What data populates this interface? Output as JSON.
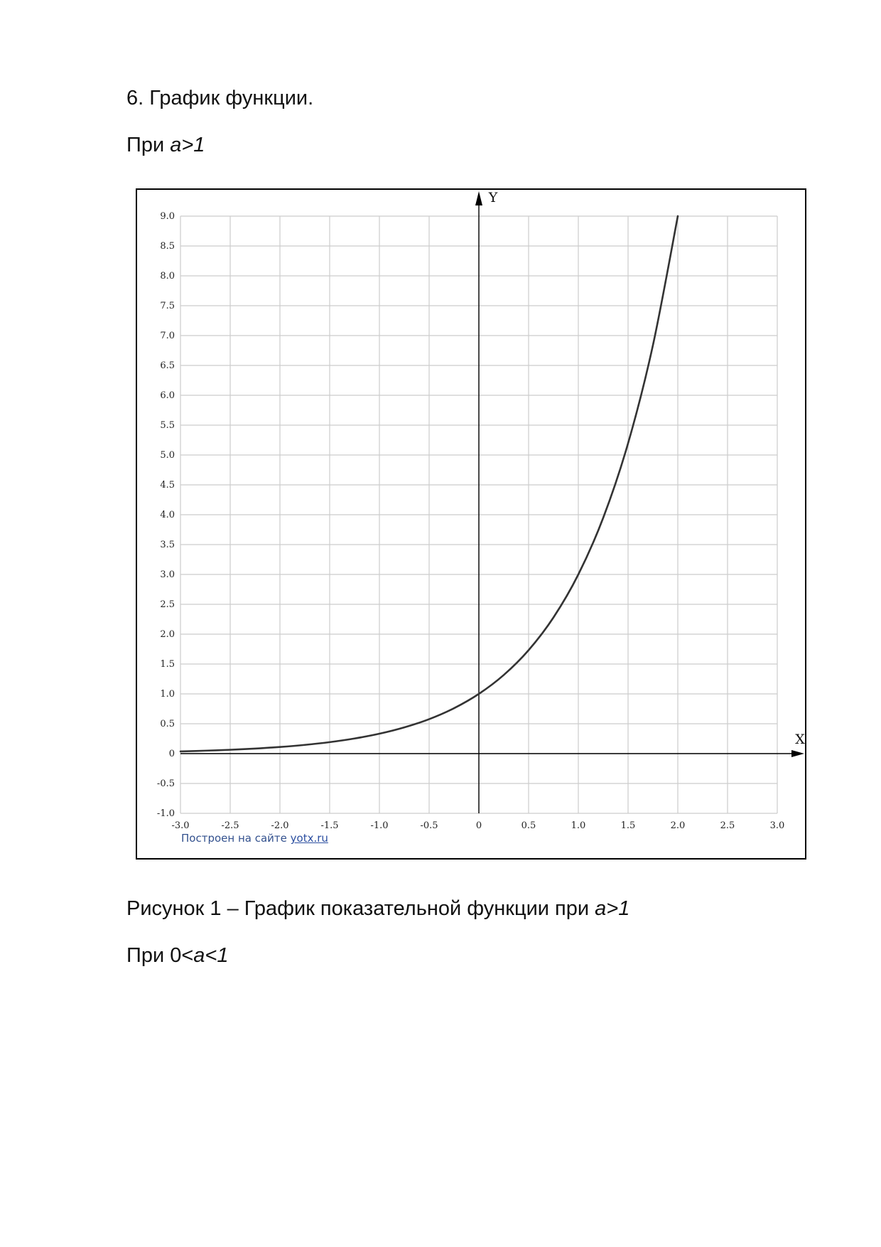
{
  "document": {
    "heading": "6. График функции.",
    "condition1_prefix": "При ",
    "condition1_var": "a>1",
    "caption_text": "Рисунок 1 – График показательной функции при ",
    "caption_var": "a>1",
    "condition2_prefix": "При 0<",
    "condition2_var": "a<1"
  },
  "figure": {
    "credit_text": "Построен на сайте ",
    "credit_link": "yotx.ru"
  },
  "chart_data": {
    "type": "line",
    "xlabel": "X",
    "ylabel": "Y",
    "xlim": [
      -3.0,
      3.0
    ],
    "ylim": [
      -1.0,
      9.0
    ],
    "grid": true,
    "x_ticks": [
      "-3.0",
      "-2.5",
      "-2.0",
      "-1.5",
      "-1.0",
      "-0.5",
      "0",
      "0.5",
      "1.0",
      "1.5",
      "2.0",
      "2.5",
      "3.0"
    ],
    "y_ticks": [
      "9.0",
      "8.5",
      "8.0",
      "7.5",
      "7.0",
      "6.5",
      "6.0",
      "5.5",
      "5.0",
      "4.5",
      "4.0",
      "3.5",
      "3.0",
      "2.5",
      "2.0",
      "1.5",
      "1.0",
      "0.5",
      "0",
      "-0.5",
      "-1.0"
    ],
    "series": [
      {
        "color": "#333333",
        "x": [
          -3.0,
          -2.75,
          -2.5,
          -2.25,
          -2.0,
          -1.75,
          -1.5,
          -1.25,
          -1.0,
          -0.75,
          -0.5,
          -0.25,
          0,
          0.25,
          0.5,
          0.75,
          1.0,
          1.25,
          1.5,
          1.75,
          2.0
        ],
        "y": [
          0.037,
          0.049,
          0.064,
          0.084,
          0.111,
          0.146,
          0.192,
          0.253,
          0.333,
          0.439,
          0.577,
          0.76,
          1.0,
          1.316,
          1.732,
          2.28,
          3.0,
          3.948,
          5.196,
          6.839,
          9.0
        ]
      }
    ],
    "colors": {
      "grid": "#cccccc",
      "axis": "#000000",
      "curve": "#333333"
    }
  }
}
